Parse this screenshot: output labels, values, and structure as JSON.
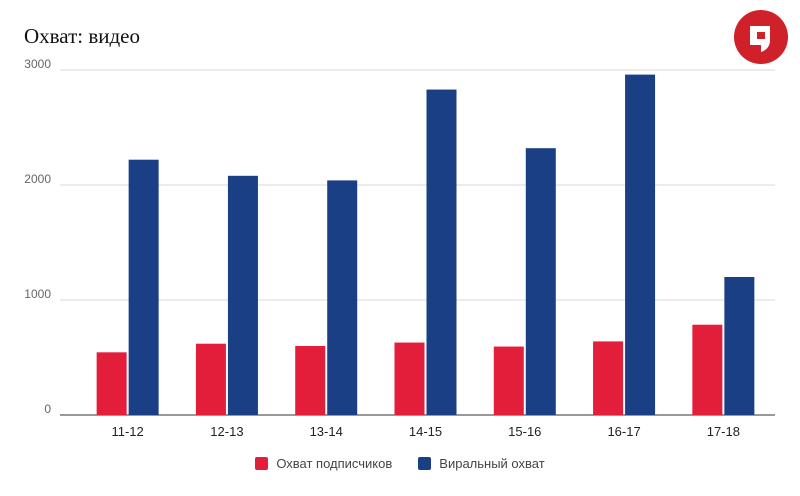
{
  "chart_data": {
    "type": "bar",
    "title": "Охват: видео",
    "categories": [
      "11-12",
      "12-13",
      "13-14",
      "14-15",
      "15-16",
      "16-17",
      "17-18"
    ],
    "series": [
      {
        "name": "Охват подписчиков",
        "color": "#e31e3a",
        "values": [
          545,
          620,
          600,
          630,
          595,
          640,
          785
        ]
      },
      {
        "name": "Виральный охват",
        "color": "#1b3f85",
        "values": [
          2220,
          2080,
          2040,
          2830,
          2320,
          2960,
          1200
        ]
      }
    ],
    "yticks": [
      0,
      1000,
      2000,
      3000
    ],
    "ylim": [
      0,
      3000
    ],
    "xlabel": "",
    "ylabel": "",
    "grid": true,
    "legend_position": "bottom"
  },
  "logo": {
    "icon": "lock-speech-bubble-icon",
    "color": "#d0202a"
  }
}
